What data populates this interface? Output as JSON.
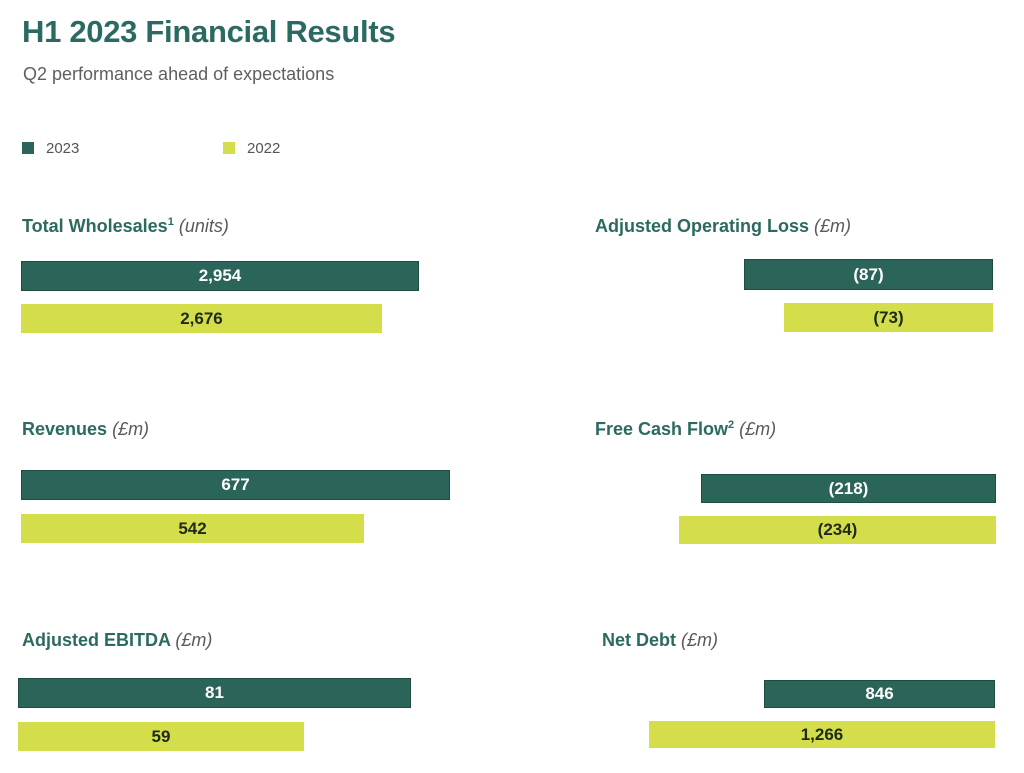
{
  "title": "H1 2023 Financial Results",
  "subtitle": "Q2 performance ahead of expectations",
  "legend": [
    {
      "label": "2023",
      "color": "#2b6459"
    },
    {
      "label": "2022",
      "color": "#d4de4a"
    }
  ],
  "chart_data": [
    {
      "type": "bar",
      "title": "Total Wholesales",
      "title_footnote": "1",
      "unit": "(units)",
      "series": [
        {
          "name": "2023",
          "value": 2954,
          "label": "2,954"
        },
        {
          "name": "2022",
          "value": 2676,
          "label": "2,676"
        }
      ]
    },
    {
      "type": "bar",
      "title": "Adjusted Operating Loss",
      "unit": "(£m)",
      "series": [
        {
          "name": "2023",
          "value": -87,
          "label": "(87)"
        },
        {
          "name": "2022",
          "value": -73,
          "label": "(73)"
        }
      ]
    },
    {
      "type": "bar",
      "title": "Revenues",
      "unit": "(£m)",
      "series": [
        {
          "name": "2023",
          "value": 677,
          "label": "677"
        },
        {
          "name": "2022",
          "value": 542,
          "label": "542"
        }
      ]
    },
    {
      "type": "bar",
      "title": "Free Cash Flow",
      "title_footnote": "2",
      "unit": "(£m)",
      "series": [
        {
          "name": "2023",
          "value": -218,
          "label": "(218)"
        },
        {
          "name": "2022",
          "value": -234,
          "label": "(234)"
        }
      ]
    },
    {
      "type": "bar",
      "title": "Adjusted EBITDA",
      "unit": "(£m)",
      "series": [
        {
          "name": "2023",
          "value": 81,
          "label": "81"
        },
        {
          "name": "2022",
          "value": 59,
          "label": "59"
        }
      ]
    },
    {
      "type": "bar",
      "title": "Net Debt",
      "unit": "(£m)",
      "series": [
        {
          "name": "2023",
          "value": 846,
          "label": "846"
        },
        {
          "name": "2022",
          "value": 1266,
          "label": "1,266"
        }
      ]
    }
  ]
}
